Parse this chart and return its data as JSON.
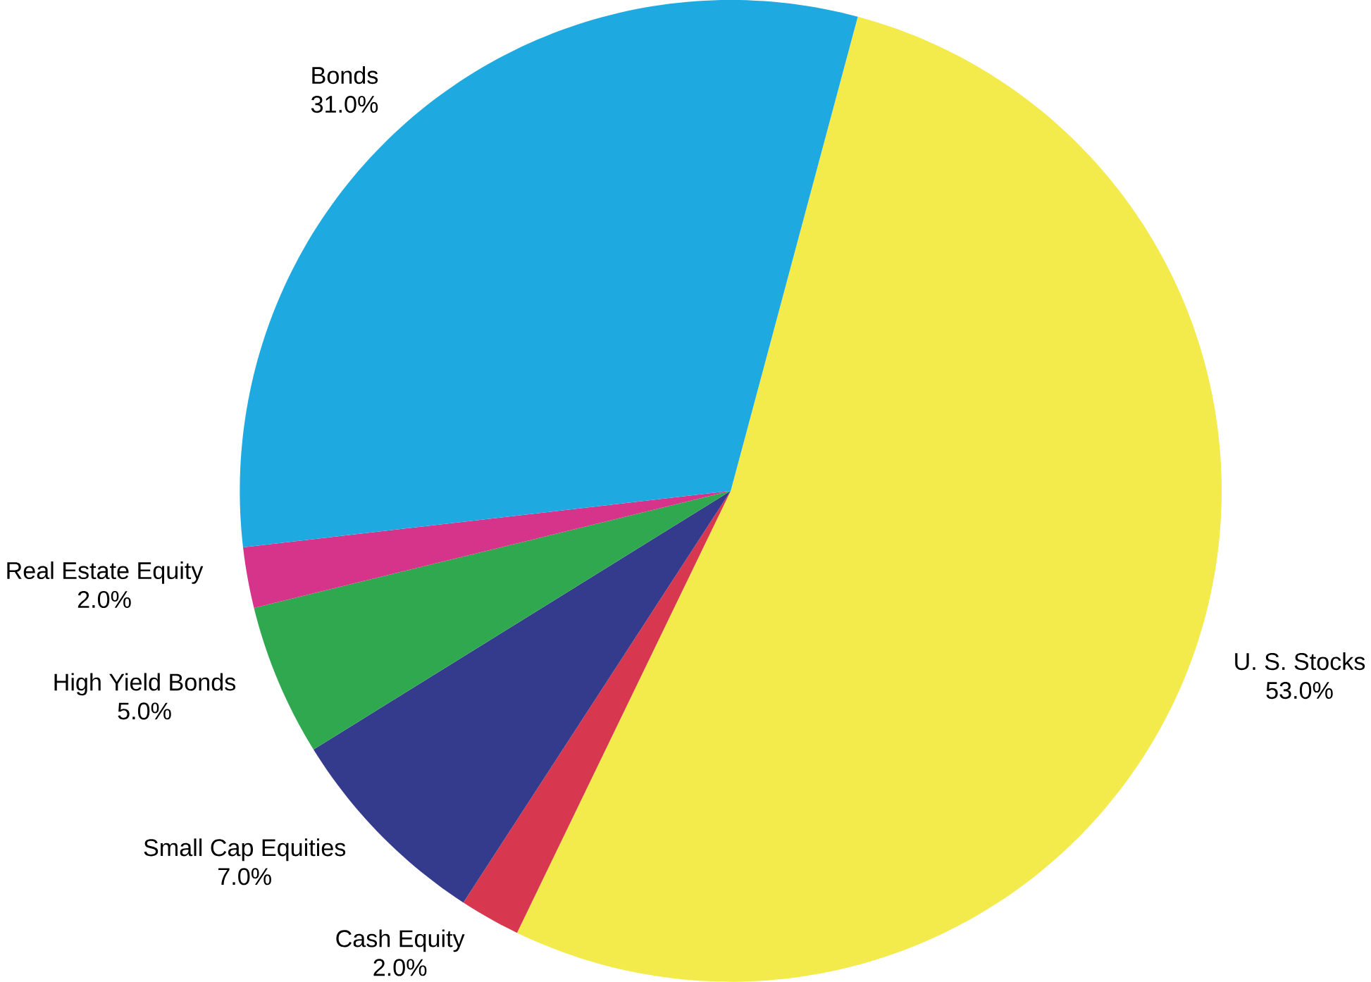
{
  "chart_data": {
    "type": "pie",
    "categories": [
      "U. S. Stocks",
      "Cash Equity",
      "Small Cap Equities",
      "High Yield Bonds",
      "Real Estate Equity",
      "Bonds"
    ],
    "values": [
      53,
      2,
      7,
      5,
      2,
      31
    ],
    "value_labels": [
      "53.0%",
      "2.0%",
      "7.0%",
      "5.0%",
      "2.0%",
      "31.0%"
    ],
    "colors": [
      "#f3ea4c",
      "#d8384f",
      "#343a8c",
      "#2fa84f",
      "#d6338a",
      "#1eaae0"
    ]
  }
}
